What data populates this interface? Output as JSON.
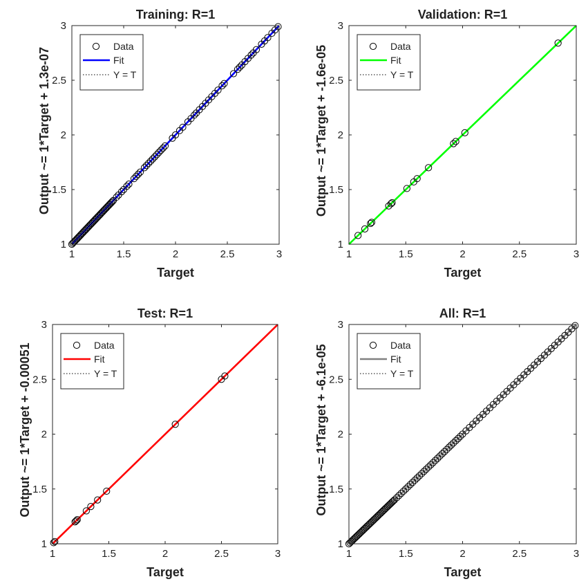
{
  "colors": {
    "data_marker": "#000000",
    "yt_line": "#000000",
    "axes_frame": "#262626"
  },
  "chart_data": [
    {
      "type": "scatter",
      "title": "Training: R=1",
      "xlabel": "Target",
      "ylabel": "Output ~= 1*Target + 1.3e-07",
      "xlim": [
        1,
        3
      ],
      "ylim": [
        1,
        3
      ],
      "xticks": [
        "1",
        "1.5",
        "2",
        "2.5",
        "3"
      ],
      "yticks": [
        "1",
        "1.5",
        "2",
        "2.5",
        "3"
      ],
      "grid": false,
      "legend_position": "top-left",
      "fit_color": "#0000ff",
      "fit": {
        "slope": 1,
        "intercept": 1.3e-07
      },
      "legend": [
        "Data",
        "Fit",
        "Y = T"
      ],
      "series": [
        {
          "name": "Data",
          "x": [
            1.0,
            1.01,
            1.02,
            1.03,
            1.04,
            1.05,
            1.06,
            1.07,
            1.08,
            1.09,
            1.1,
            1.11,
            1.12,
            1.13,
            1.14,
            1.15,
            1.16,
            1.17,
            1.18,
            1.19,
            1.2,
            1.21,
            1.22,
            1.23,
            1.24,
            1.25,
            1.26,
            1.27,
            1.28,
            1.29,
            1.3,
            1.31,
            1.32,
            1.33,
            1.34,
            1.35,
            1.36,
            1.37,
            1.38,
            1.39,
            1.4,
            1.43,
            1.45,
            1.48,
            1.5,
            1.53,
            1.55,
            1.6,
            1.62,
            1.64,
            1.66,
            1.7,
            1.72,
            1.74,
            1.76,
            1.78,
            1.8,
            1.82,
            1.84,
            1.86,
            1.88,
            1.9,
            1.97,
            2.0,
            2.04,
            2.07,
            2.12,
            2.15,
            2.18,
            2.2,
            2.23,
            2.26,
            2.29,
            2.32,
            2.35,
            2.38,
            2.41,
            2.45,
            2.47,
            2.56,
            2.6,
            2.62,
            2.64,
            2.67,
            2.7,
            2.73,
            2.75,
            2.78,
            2.83,
            2.86,
            2.89,
            2.93,
            2.96,
            2.99
          ],
          "y": [
            1.0,
            1.01,
            1.02,
            1.03,
            1.04,
            1.05,
            1.06,
            1.07,
            1.08,
            1.09,
            1.1,
            1.11,
            1.12,
            1.13,
            1.14,
            1.15,
            1.16,
            1.17,
            1.18,
            1.19,
            1.2,
            1.21,
            1.22,
            1.23,
            1.24,
            1.25,
            1.26,
            1.27,
            1.28,
            1.29,
            1.3,
            1.31,
            1.32,
            1.33,
            1.34,
            1.35,
            1.36,
            1.37,
            1.38,
            1.39,
            1.4,
            1.43,
            1.45,
            1.48,
            1.5,
            1.53,
            1.55,
            1.6,
            1.62,
            1.64,
            1.66,
            1.7,
            1.72,
            1.74,
            1.76,
            1.78,
            1.8,
            1.82,
            1.84,
            1.86,
            1.88,
            1.9,
            1.97,
            2.0,
            2.04,
            2.07,
            2.12,
            2.15,
            2.18,
            2.2,
            2.23,
            2.26,
            2.29,
            2.32,
            2.35,
            2.38,
            2.41,
            2.45,
            2.47,
            2.56,
            2.6,
            2.62,
            2.64,
            2.67,
            2.7,
            2.73,
            2.75,
            2.78,
            2.83,
            2.86,
            2.89,
            2.93,
            2.96,
            2.99
          ]
        }
      ]
    },
    {
      "type": "scatter",
      "title": "Validation: R=1",
      "xlabel": "Target",
      "ylabel": "Output ~= 1*Target + -1.6e-05",
      "xlim": [
        1,
        3
      ],
      "ylim": [
        1,
        3
      ],
      "xticks": [
        "1",
        "1.5",
        "2",
        "2.5",
        "3"
      ],
      "yticks": [
        "1",
        "1.5",
        "2",
        "2.5",
        "3"
      ],
      "grid": false,
      "legend_position": "top-left",
      "fit_color": "#00ff00",
      "fit": {
        "slope": 1,
        "intercept": -1.6e-05
      },
      "legend": [
        "Data",
        "Fit",
        "Y = T"
      ],
      "series": [
        {
          "name": "Data",
          "x": [
            1.08,
            1.14,
            1.19,
            1.2,
            1.35,
            1.37,
            1.38,
            1.51,
            1.57,
            1.6,
            1.7,
            1.92,
            1.94,
            2.02,
            2.84
          ],
          "y": [
            1.08,
            1.14,
            1.19,
            1.2,
            1.35,
            1.37,
            1.38,
            1.51,
            1.57,
            1.6,
            1.7,
            1.92,
            1.94,
            2.02,
            2.84
          ]
        }
      ]
    },
    {
      "type": "scatter",
      "title": "Test: R=1",
      "xlabel": "Target",
      "ylabel": "Output ~= 1*Target + -0.00051",
      "xlim": [
        1,
        3
      ],
      "ylim": [
        1,
        3
      ],
      "xticks": [
        "1",
        "1.5",
        "2",
        "2.5",
        "3"
      ],
      "yticks": [
        "1",
        "1.5",
        "2",
        "2.5",
        "3"
      ],
      "grid": false,
      "legend_position": "top-left",
      "fit_color": "#ff0000",
      "fit": {
        "slope": 1,
        "intercept": -0.00051
      },
      "legend": [
        "Data",
        "Fit",
        "Y = T"
      ],
      "series": [
        {
          "name": "Data",
          "x": [
            1.01,
            1.02,
            1.2,
            1.21,
            1.22,
            1.3,
            1.34,
            1.4,
            1.48,
            2.09,
            2.5,
            2.53
          ],
          "y": [
            1.01,
            1.02,
            1.2,
            1.21,
            1.22,
            1.3,
            1.34,
            1.4,
            1.48,
            2.09,
            2.5,
            2.53
          ]
        }
      ]
    },
    {
      "type": "scatter",
      "title": "All: R=1",
      "xlabel": "Target",
      "ylabel": "Output ~= 1*Target + -6.1e-05",
      "xlim": [
        1,
        3
      ],
      "ylim": [
        1,
        3
      ],
      "xticks": [
        "1",
        "1.5",
        "2",
        "2.5",
        "3"
      ],
      "yticks": [
        "1",
        "1.5",
        "2",
        "2.5",
        "3"
      ],
      "grid": false,
      "legend_position": "top-left",
      "fit_color": "#808080",
      "fit": {
        "slope": 1,
        "intercept": -6.1e-05
      },
      "legend": [
        "Data",
        "Fit",
        "Y = T"
      ],
      "series": [
        {
          "name": "Data",
          "x": [
            1.0,
            1.01,
            1.02,
            1.03,
            1.04,
            1.05,
            1.06,
            1.07,
            1.08,
            1.09,
            1.1,
            1.11,
            1.12,
            1.13,
            1.14,
            1.15,
            1.16,
            1.17,
            1.18,
            1.19,
            1.2,
            1.21,
            1.22,
            1.23,
            1.24,
            1.25,
            1.26,
            1.27,
            1.28,
            1.29,
            1.3,
            1.31,
            1.32,
            1.33,
            1.34,
            1.35,
            1.36,
            1.37,
            1.38,
            1.39,
            1.4,
            1.42,
            1.44,
            1.46,
            1.48,
            1.5,
            1.52,
            1.54,
            1.56,
            1.58,
            1.6,
            1.62,
            1.64,
            1.66,
            1.68,
            1.7,
            1.72,
            1.74,
            1.76,
            1.78,
            1.8,
            1.82,
            1.84,
            1.86,
            1.88,
            1.9,
            1.92,
            1.94,
            1.96,
            1.98,
            2.0,
            2.03,
            2.06,
            2.09,
            2.12,
            2.15,
            2.18,
            2.21,
            2.24,
            2.27,
            2.3,
            2.33,
            2.36,
            2.39,
            2.42,
            2.45,
            2.48,
            2.51,
            2.54,
            2.57,
            2.6,
            2.63,
            2.66,
            2.69,
            2.72,
            2.75,
            2.78,
            2.81,
            2.84,
            2.87,
            2.9,
            2.93,
            2.96,
            2.99
          ],
          "y": [
            1.0,
            1.01,
            1.02,
            1.03,
            1.04,
            1.05,
            1.06,
            1.07,
            1.08,
            1.09,
            1.1,
            1.11,
            1.12,
            1.13,
            1.14,
            1.15,
            1.16,
            1.17,
            1.18,
            1.19,
            1.2,
            1.21,
            1.22,
            1.23,
            1.24,
            1.25,
            1.26,
            1.27,
            1.28,
            1.29,
            1.3,
            1.31,
            1.32,
            1.33,
            1.34,
            1.35,
            1.36,
            1.37,
            1.38,
            1.39,
            1.4,
            1.42,
            1.44,
            1.46,
            1.48,
            1.5,
            1.52,
            1.54,
            1.56,
            1.58,
            1.6,
            1.62,
            1.64,
            1.66,
            1.68,
            1.7,
            1.72,
            1.74,
            1.76,
            1.78,
            1.8,
            1.82,
            1.84,
            1.86,
            1.88,
            1.9,
            1.92,
            1.94,
            1.96,
            1.98,
            2.0,
            2.03,
            2.06,
            2.09,
            2.12,
            2.15,
            2.18,
            2.21,
            2.24,
            2.27,
            2.3,
            2.33,
            2.36,
            2.39,
            2.42,
            2.45,
            2.48,
            2.51,
            2.54,
            2.57,
            2.6,
            2.63,
            2.66,
            2.69,
            2.72,
            2.75,
            2.78,
            2.81,
            2.84,
            2.87,
            2.9,
            2.93,
            2.96,
            2.99
          ]
        }
      ]
    }
  ]
}
